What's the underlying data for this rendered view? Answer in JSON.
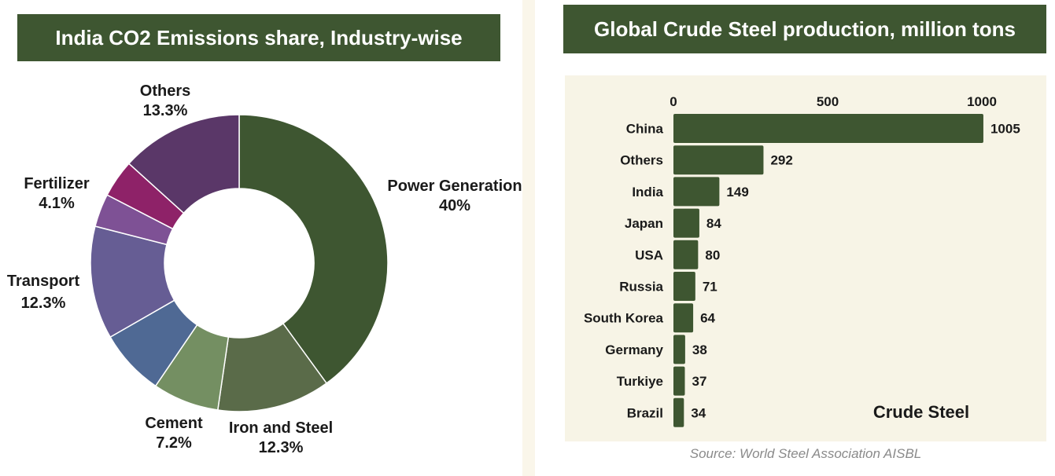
{
  "colors": {
    "title_bg": "#3e5631",
    "bar": "#3e5631",
    "plot_bg": "#f7f4e6"
  },
  "donut": {
    "title": "India CO2 Emissions share, Industry-wise"
  },
  "bars": {
    "title": "Global Crude Steel production, million tons",
    "legend_label": "Crude Steel",
    "source": "Source: World Steel Association AISBL"
  },
  "chart_data": [
    {
      "type": "pie",
      "title": "India CO2 Emissions share, Industry-wise",
      "slices": [
        {
          "label": "Power Generation",
          "value": 40,
          "value_label": "40%",
          "color": "#3e5631"
        },
        {
          "label": "Iron and Steel",
          "value": 12.3,
          "value_label": "12.3%",
          "color": "#5a6b49"
        },
        {
          "label": "Cement",
          "value": 7.2,
          "value_label": "7.2%",
          "color": "#748f62"
        },
        {
          "label": "",
          "value": 7.2,
          "value_label": "",
          "color": "#4f6994"
        },
        {
          "label": "Transport",
          "value": 12.3,
          "value_label": "12.3%",
          "color": "#665d94"
        },
        {
          "label": "",
          "value": 3.6,
          "value_label": "",
          "color": "#7e5195"
        },
        {
          "label": "Fertilizer",
          "value": 4.1,
          "value_label": "4.1%",
          "color": "#8e2268"
        },
        {
          "label": "Others",
          "value": 13.3,
          "value_label": "13.3%",
          "color": "#5a3768"
        }
      ]
    },
    {
      "type": "bar",
      "orientation": "horizontal",
      "title": "Global Crude Steel production, million tons",
      "categories": [
        "China",
        "Others",
        "India",
        "Japan",
        "USA",
        "Russia",
        "South Korea",
        "Germany",
        "Turkiye",
        "Brazil"
      ],
      "series": [
        {
          "name": "Crude Steel",
          "values": [
            1005,
            292,
            149,
            84,
            80,
            71,
            64,
            38,
            37,
            34
          ]
        }
      ],
      "xticks": [
        0,
        500,
        1000
      ],
      "xlim": [
        0,
        1150
      ],
      "legend_position": "bottom-right"
    }
  ]
}
